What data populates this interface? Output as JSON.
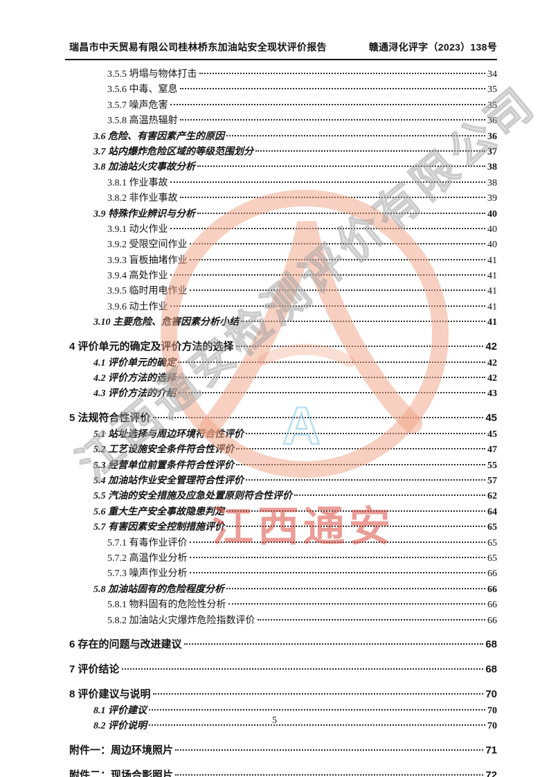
{
  "header": {
    "left": "瑞昌市中天贸易有限公司桂林桥东加油站安全现状评价报告",
    "right": "赣通浔化评字（2023）138号"
  },
  "toc": {
    "entries": [
      {
        "level": 3,
        "label": "3.5.5 坍塌与物体打击",
        "page": "34"
      },
      {
        "level": 3,
        "label": "3.5.6 中毒、窒息",
        "page": "35"
      },
      {
        "level": 3,
        "label": "3.5.7 噪声危害",
        "page": "35"
      },
      {
        "level": 3,
        "label": "3.5.8 高温热辐射",
        "page": "36"
      },
      {
        "level": 2,
        "label": "3.6 危险、有害因素产生的原因",
        "page": "36"
      },
      {
        "level": 2,
        "label": "3.7 站内爆炸危险区域的等级范围划分",
        "page": "37"
      },
      {
        "level": 2,
        "label": "3.8 加油站火灾事故分析",
        "page": "38"
      },
      {
        "level": 3,
        "label": "3.8.1 作业事故",
        "page": "38"
      },
      {
        "level": 3,
        "label": "3.8.2 非作业事故",
        "page": "39"
      },
      {
        "level": 2,
        "label": "3.9 特殊作业辨识与分析",
        "page": "40"
      },
      {
        "level": 3,
        "label": "3.9.1 动火作业",
        "page": "40"
      },
      {
        "level": 3,
        "label": "3.9.2 受限空间作业",
        "page": "40"
      },
      {
        "level": 3,
        "label": "3.9.3 盲板抽堵作业",
        "page": "41"
      },
      {
        "level": 3,
        "label": "3.9.4 高处作业",
        "page": "41"
      },
      {
        "level": 3,
        "label": "3.9.5 临时用电作业",
        "page": "41"
      },
      {
        "level": 3,
        "label": "3.9.6 动土作业",
        "page": "41"
      },
      {
        "level": 2,
        "label": "3.10 主要危险、危害因素分析小结",
        "page": "41"
      },
      {
        "level": 1,
        "label": "4 评价单元的确定及评价方法的选择",
        "page": "42"
      },
      {
        "level": 2,
        "label": "4.1 评价单元的确定",
        "page": "42"
      },
      {
        "level": 2,
        "label": "4.2 评价方法的选择",
        "page": "42"
      },
      {
        "level": 2,
        "label": "4.3 评价方法的介绍",
        "page": "43"
      },
      {
        "level": 1,
        "label": "5 法规符合性评价",
        "page": "45"
      },
      {
        "level": 2,
        "label": "5.1 站址选择与周边环境符合性评价",
        "page": "45"
      },
      {
        "level": 2,
        "label": "5.2 工艺设施安全条件符合性评价",
        "page": "47"
      },
      {
        "level": 2,
        "label": "5.3 经营单位前置条件符合性评价",
        "page": "55"
      },
      {
        "level": 2,
        "label": "5.4 加油站作业安全管理符合性评价",
        "page": "57"
      },
      {
        "level": 2,
        "label": "5.5 汽油的安全措施及应急处置原则符合性评价",
        "page": "62"
      },
      {
        "level": 2,
        "label": "5.6 重大生产安全事故隐患判定",
        "page": "64"
      },
      {
        "level": 2,
        "label": "5.7 有害因素安全控制措施评价",
        "page": "65"
      },
      {
        "level": 3,
        "label": "5.7.1 有毒作业评价",
        "page": "65"
      },
      {
        "level": 3,
        "label": "5.7.2 高温作业分析",
        "page": "65"
      },
      {
        "level": 3,
        "label": "5.7.3 噪声作业分析",
        "page": "66"
      },
      {
        "level": 2,
        "label": "5.8 加油站固有的危险程度分析",
        "page": "66"
      },
      {
        "level": 3,
        "label": "5.8.1 物料固有的危险性分析",
        "page": "66"
      },
      {
        "level": 3,
        "label": "5.8.2 加油站火灾爆炸危险指数评价",
        "page": "66"
      },
      {
        "level": 1,
        "label": "6 存在的问题与改进建议",
        "page": "68"
      },
      {
        "level": 1,
        "label": "7 评价结论",
        "page": "68"
      },
      {
        "level": 1,
        "label": "8 评价建议与说明",
        "page": "70"
      },
      {
        "level": 2,
        "label": "8.1 评价建议",
        "page": "70"
      },
      {
        "level": 2,
        "label": "8.2 评价说明",
        "page": "70"
      },
      {
        "level": 1,
        "label": "附件一：周边环境照片",
        "page": "71"
      },
      {
        "level": 1,
        "label": "附件二：现场合影照片",
        "page": "72"
      }
    ]
  },
  "watermark": {
    "diagonal_text": "江西通安检测评价有限公司",
    "red_text": "江西通安",
    "blue_text": "A",
    "circle_color": "#f0a183",
    "red_color": "#db4d42",
    "gray_color": "#a0a0a0",
    "blue_color": "#78c3e8"
  },
  "footer": {
    "page_number": "5"
  }
}
